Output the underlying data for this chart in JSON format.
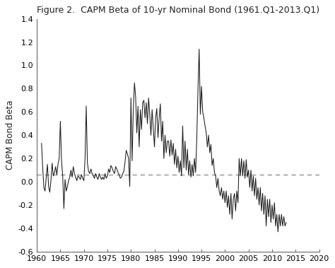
{
  "title": "Figure 2.  CAPM Beta of 10-yr Nominal Bond (1961.Q1-2013.Q1)",
  "ylabel": "CAPM Bond Beta",
  "xlim": [
    1960,
    2020
  ],
  "ylim": [
    -0.6,
    1.4
  ],
  "yticks": [
    -0.6,
    -0.4,
    -0.2,
    0.0,
    0.2,
    0.4,
    0.6,
    0.8,
    1.0,
    1.2,
    1.4
  ],
  "xticks": [
    1960,
    1965,
    1970,
    1975,
    1980,
    1985,
    1990,
    1995,
    2000,
    2005,
    2010,
    2015,
    2020
  ],
  "dashed_line_y": 0.06,
  "line_color": "#1a1a1a",
  "dashed_color": "#888888",
  "background_color": "#ffffff",
  "title_fontsize": 9.0,
  "label_fontsize": 8.5,
  "tick_fontsize": 8,
  "series": [
    [
      1961.0,
      0.33
    ],
    [
      1961.25,
      0.12
    ],
    [
      1961.5,
      -0.05
    ],
    [
      1961.75,
      -0.08
    ],
    [
      1962.0,
      0.04
    ],
    [
      1962.25,
      0.15
    ],
    [
      1962.5,
      -0.04
    ],
    [
      1962.75,
      -0.09
    ],
    [
      1963.0,
      0.01
    ],
    [
      1963.25,
      0.16
    ],
    [
      1963.5,
      0.05
    ],
    [
      1963.75,
      0.08
    ],
    [
      1964.0,
      0.13
    ],
    [
      1964.25,
      0.06
    ],
    [
      1964.5,
      0.15
    ],
    [
      1964.75,
      0.2
    ],
    [
      1965.0,
      0.52
    ],
    [
      1965.25,
      0.18
    ],
    [
      1965.5,
      0.05
    ],
    [
      1965.75,
      -0.23
    ],
    [
      1966.0,
      0.02
    ],
    [
      1966.25,
      -0.08
    ],
    [
      1966.5,
      -0.04
    ],
    [
      1966.75,
      0.01
    ],
    [
      1967.0,
      0.04
    ],
    [
      1967.25,
      0.1
    ],
    [
      1967.5,
      0.04
    ],
    [
      1967.75,
      0.13
    ],
    [
      1968.0,
      0.07
    ],
    [
      1968.25,
      0.04
    ],
    [
      1968.5,
      0.01
    ],
    [
      1968.75,
      0.05
    ],
    [
      1969.0,
      0.04
    ],
    [
      1969.25,
      0.02
    ],
    [
      1969.5,
      0.06
    ],
    [
      1969.75,
      0.03
    ],
    [
      1970.0,
      0.01
    ],
    [
      1970.25,
      0.2
    ],
    [
      1970.5,
      0.65
    ],
    [
      1970.75,
      0.16
    ],
    [
      1971.0,
      0.09
    ],
    [
      1971.25,
      0.07
    ],
    [
      1971.5,
      0.11
    ],
    [
      1971.75,
      0.07
    ],
    [
      1972.0,
      0.05
    ],
    [
      1972.25,
      0.03
    ],
    [
      1972.5,
      0.07
    ],
    [
      1972.75,
      0.04
    ],
    [
      1973.0,
      0.02
    ],
    [
      1973.25,
      0.07
    ],
    [
      1973.5,
      0.04
    ],
    [
      1973.75,
      0.02
    ],
    [
      1974.0,
      0.04
    ],
    [
      1974.25,
      0.02
    ],
    [
      1974.5,
      0.07
    ],
    [
      1974.75,
      0.03
    ],
    [
      1975.0,
      0.05
    ],
    [
      1975.25,
      0.11
    ],
    [
      1975.5,
      0.08
    ],
    [
      1975.75,
      0.14
    ],
    [
      1976.0,
      0.12
    ],
    [
      1976.25,
      0.09
    ],
    [
      1976.5,
      0.07
    ],
    [
      1976.75,
      0.13
    ],
    [
      1977.0,
      0.11
    ],
    [
      1977.25,
      0.08
    ],
    [
      1977.5,
      0.06
    ],
    [
      1977.75,
      0.03
    ],
    [
      1978.0,
      0.04
    ],
    [
      1978.25,
      0.07
    ],
    [
      1978.5,
      0.09
    ],
    [
      1978.75,
      0.17
    ],
    [
      1979.0,
      0.27
    ],
    [
      1979.25,
      0.24
    ],
    [
      1979.5,
      0.2
    ],
    [
      1979.75,
      -0.04
    ],
    [
      1980.0,
      0.72
    ],
    [
      1980.25,
      0.18
    ],
    [
      1980.5,
      0.62
    ],
    [
      1980.75,
      0.85
    ],
    [
      1981.0,
      0.73
    ],
    [
      1981.25,
      0.42
    ],
    [
      1981.5,
      0.65
    ],
    [
      1981.75,
      0.3
    ],
    [
      1982.0,
      0.62
    ],
    [
      1982.25,
      0.45
    ],
    [
      1982.5,
      0.68
    ],
    [
      1982.75,
      0.7
    ],
    [
      1983.0,
      0.55
    ],
    [
      1983.25,
      0.68
    ],
    [
      1983.5,
      0.5
    ],
    [
      1983.75,
      0.72
    ],
    [
      1984.0,
      0.58
    ],
    [
      1984.25,
      0.4
    ],
    [
      1984.5,
      0.62
    ],
    [
      1984.75,
      0.46
    ],
    [
      1985.0,
      0.3
    ],
    [
      1985.25,
      0.55
    ],
    [
      1985.5,
      0.63
    ],
    [
      1985.75,
      0.38
    ],
    [
      1986.0,
      0.55
    ],
    [
      1986.25,
      0.67
    ],
    [
      1986.5,
      0.35
    ],
    [
      1986.75,
      0.52
    ],
    [
      1987.0,
      0.2
    ],
    [
      1987.25,
      0.4
    ],
    [
      1987.5,
      0.25
    ],
    [
      1987.75,
      0.35
    ],
    [
      1988.0,
      0.35
    ],
    [
      1988.25,
      0.22
    ],
    [
      1988.5,
      0.36
    ],
    [
      1988.75,
      0.23
    ],
    [
      1989.0,
      0.33
    ],
    [
      1989.25,
      0.15
    ],
    [
      1989.5,
      0.28
    ],
    [
      1989.75,
      0.12
    ],
    [
      1990.0,
      0.22
    ],
    [
      1990.25,
      0.08
    ],
    [
      1990.5,
      0.18
    ],
    [
      1990.75,
      0.05
    ],
    [
      1991.0,
      0.48
    ],
    [
      1991.25,
      0.12
    ],
    [
      1991.5,
      0.35
    ],
    [
      1991.75,
      0.1
    ],
    [
      1992.0,
      0.28
    ],
    [
      1992.25,
      0.06
    ],
    [
      1992.5,
      0.18
    ],
    [
      1992.75,
      0.04
    ],
    [
      1993.0,
      0.15
    ],
    [
      1993.25,
      0.05
    ],
    [
      1993.5,
      0.2
    ],
    [
      1993.75,
      0.08
    ],
    [
      1994.0,
      0.38
    ],
    [
      1994.25,
      0.8
    ],
    [
      1994.5,
      1.14
    ],
    [
      1994.75,
      0.58
    ],
    [
      1995.0,
      0.82
    ],
    [
      1995.25,
      0.6
    ],
    [
      1995.5,
      0.55
    ],
    [
      1995.75,
      0.48
    ],
    [
      1996.0,
      0.42
    ],
    [
      1996.25,
      0.3
    ],
    [
      1996.5,
      0.4
    ],
    [
      1996.75,
      0.25
    ],
    [
      1997.0,
      0.32
    ],
    [
      1997.25,
      0.14
    ],
    [
      1997.5,
      0.2
    ],
    [
      1997.75,
      0.08
    ],
    [
      1998.0,
      0.05
    ],
    [
      1998.25,
      -0.05
    ],
    [
      1998.5,
      0.03
    ],
    [
      1998.75,
      -0.08
    ],
    [
      1999.0,
      -0.12
    ],
    [
      1999.25,
      -0.05
    ],
    [
      1999.5,
      -0.15
    ],
    [
      1999.75,
      -0.08
    ],
    [
      2000.0,
      -0.18
    ],
    [
      2000.25,
      -0.08
    ],
    [
      2000.5,
      -0.22
    ],
    [
      2000.75,
      -0.12
    ],
    [
      2001.0,
      -0.28
    ],
    [
      2001.25,
      -0.1
    ],
    [
      2001.5,
      -0.32
    ],
    [
      2001.75,
      -0.15
    ],
    [
      2002.0,
      -0.1
    ],
    [
      2002.25,
      -0.25
    ],
    [
      2002.5,
      -0.08
    ],
    [
      2002.75,
      -0.18
    ],
    [
      2003.0,
      0.2
    ],
    [
      2003.25,
      0.05
    ],
    [
      2003.5,
      0.2
    ],
    [
      2003.75,
      0.05
    ],
    [
      2004.0,
      0.18
    ],
    [
      2004.25,
      0.03
    ],
    [
      2004.5,
      0.19
    ],
    [
      2004.75,
      0.04
    ],
    [
      2005.0,
      0.1
    ],
    [
      2005.25,
      -0.05
    ],
    [
      2005.5,
      0.1
    ],
    [
      2005.75,
      -0.08
    ],
    [
      2006.0,
      0.05
    ],
    [
      2006.25,
      -0.12
    ],
    [
      2006.5,
      0.03
    ],
    [
      2006.75,
      -0.15
    ],
    [
      2007.0,
      -0.05
    ],
    [
      2007.25,
      -0.2
    ],
    [
      2007.5,
      -0.05
    ],
    [
      2007.75,
      -0.25
    ],
    [
      2008.0,
      -0.1
    ],
    [
      2008.25,
      -0.28
    ],
    [
      2008.5,
      -0.12
    ],
    [
      2008.75,
      -0.38
    ],
    [
      2009.0,
      -0.15
    ],
    [
      2009.25,
      -0.3
    ],
    [
      2009.5,
      -0.15
    ],
    [
      2009.75,
      -0.35
    ],
    [
      2010.0,
      -0.2
    ],
    [
      2010.25,
      -0.32
    ],
    [
      2010.5,
      -0.18
    ],
    [
      2010.75,
      -0.38
    ],
    [
      2011.0,
      -0.28
    ],
    [
      2011.25,
      -0.43
    ],
    [
      2011.5,
      -0.28
    ],
    [
      2011.75,
      -0.38
    ],
    [
      2012.0,
      -0.28
    ],
    [
      2012.25,
      -0.38
    ],
    [
      2012.5,
      -0.3
    ],
    [
      2012.75,
      -0.38
    ],
    [
      2013.0,
      -0.35
    ]
  ]
}
